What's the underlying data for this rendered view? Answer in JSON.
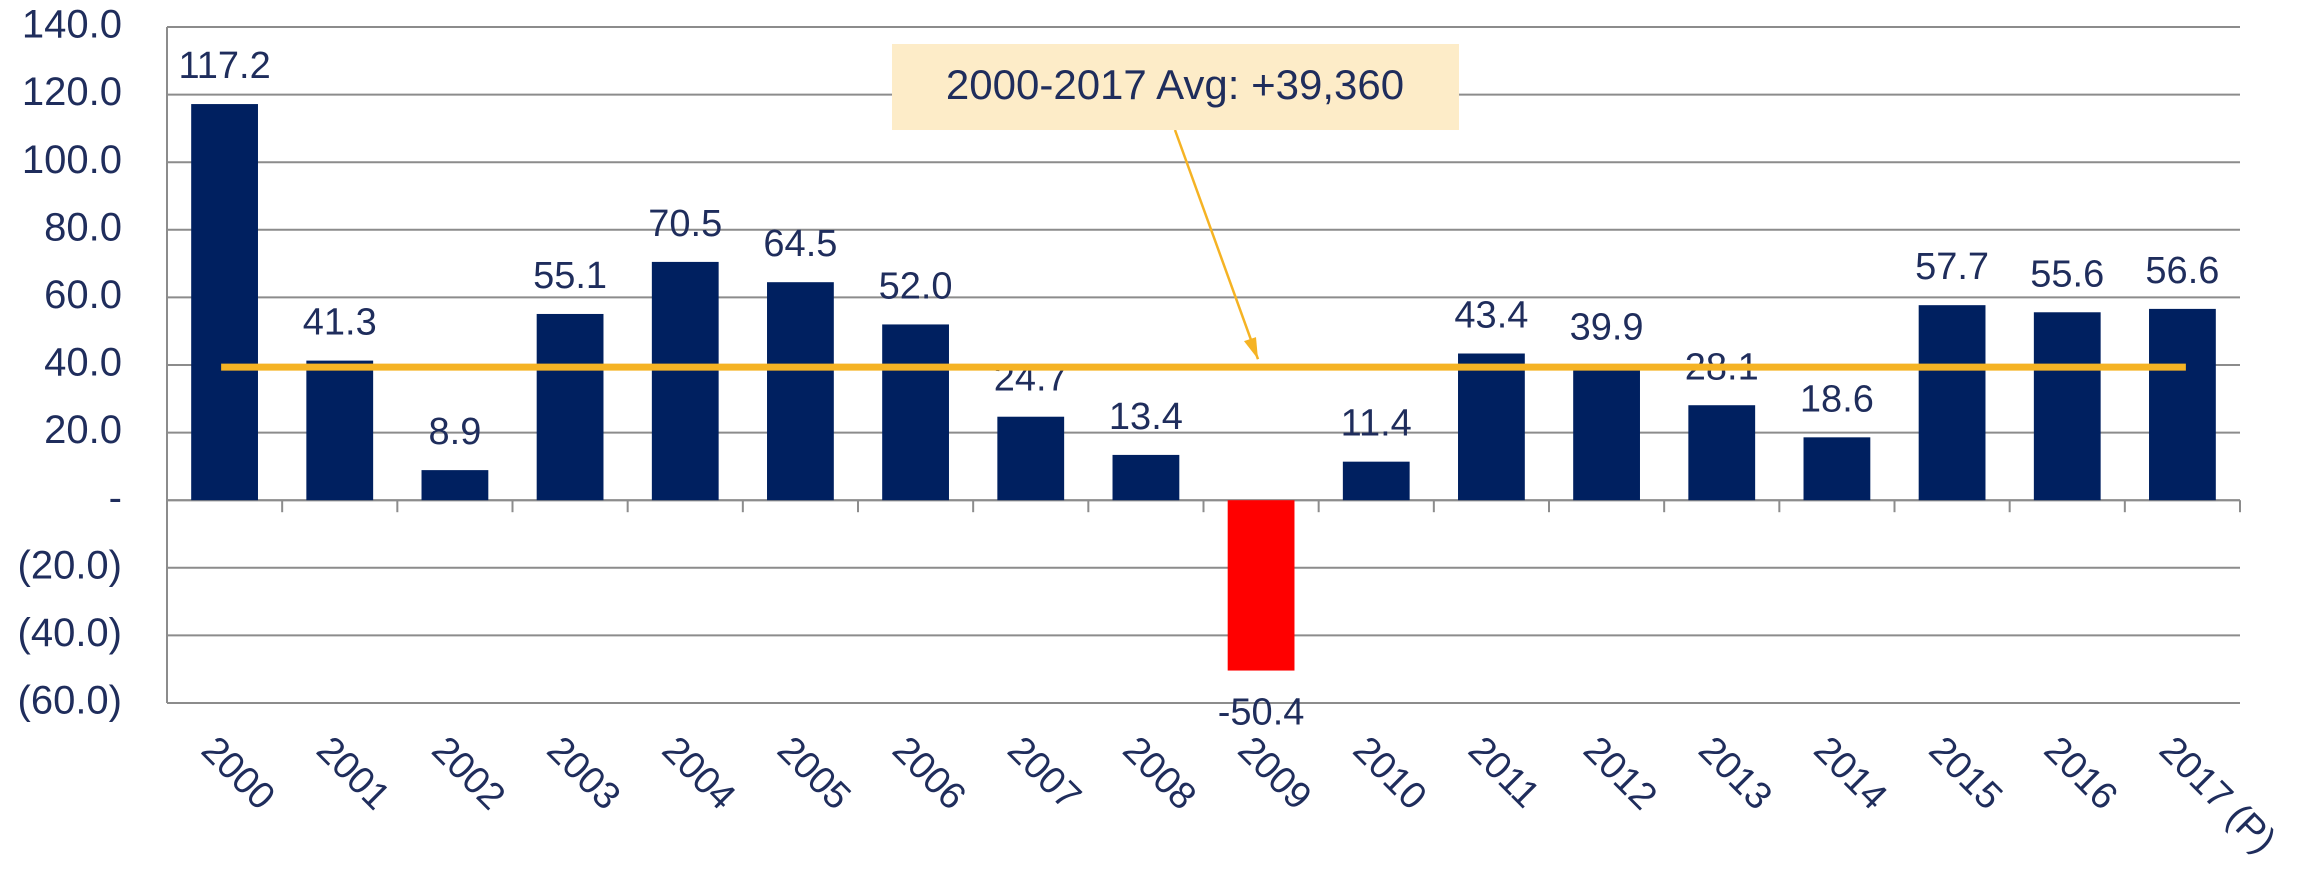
{
  "chart_data": {
    "type": "bar",
    "categories": [
      "2000",
      "2001",
      "2002",
      "2003",
      "2004",
      "2005",
      "2006",
      "2007",
      "2008",
      "2009",
      "2010",
      "2011",
      "2012",
      "2013",
      "2014",
      "2015",
      "2016",
      "2017 (P)"
    ],
    "values": [
      117.2,
      41.3,
      8.9,
      55.1,
      70.5,
      64.5,
      52.0,
      24.7,
      13.4,
      -50.4,
      11.4,
      43.4,
      39.9,
      28.1,
      18.6,
      57.7,
      55.6,
      56.6
    ],
    "value_labels": [
      "117.2",
      "41.3",
      "8.9",
      "55.1",
      "70.5",
      "64.5",
      "52.0",
      "24.7",
      "13.4",
      "-50.4",
      "11.4",
      "43.4",
      "39.9",
      "28.1",
      "18.6",
      "57.7",
      "55.6",
      "56.6"
    ],
    "color": "#002060",
    "negative_color": "#ff0000",
    "ylim": [
      -60,
      140
    ],
    "yticks": [
      {
        "value": 140,
        "label": "140.0"
      },
      {
        "value": 120,
        "label": "120.0"
      },
      {
        "value": 100,
        "label": "100.0"
      },
      {
        "value": 80,
        "label": "80.0"
      },
      {
        "value": 60,
        "label": "60.0"
      },
      {
        "value": 40,
        "label": "40.0"
      },
      {
        "value": 20,
        "label": "20.0"
      },
      {
        "value": 0,
        "label": "-"
      },
      {
        "value": -20,
        "label": "(20.0)"
      },
      {
        "value": -40,
        "label": "(40.0)"
      },
      {
        "value": -60,
        "label": "(60.0)"
      }
    ],
    "grid": true,
    "average_line": {
      "value": 39.36,
      "color": "#f5b324",
      "label": "2000-2017 Avg: +39,360"
    }
  }
}
